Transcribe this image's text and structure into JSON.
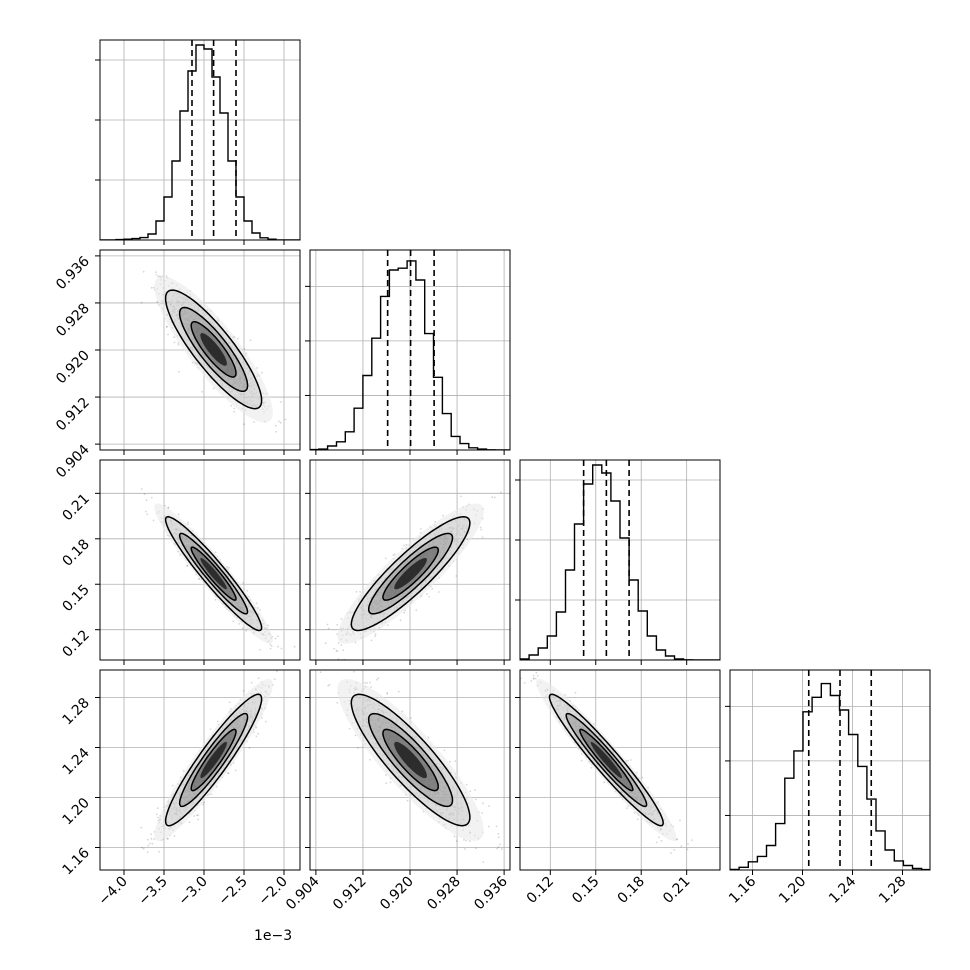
{
  "chart_data": {
    "type": "corner",
    "grid": true,
    "parameters": [
      {
        "index": 0,
        "range": [
          -4.3,
          -1.8
        ],
        "ticks": [
          -4.0,
          -3.5,
          -3.0,
          -2.5,
          -2.0
        ],
        "tick_labels": [
          "−4.0",
          "−3.5",
          "−3.0",
          "−2.5",
          "−2.0"
        ],
        "offset_label": "1e−3",
        "quantiles": [
          -3.15,
          -2.88,
          -2.6
        ],
        "hist_edges": [
          -4.3,
          -4.2,
          -4.1,
          -4.0,
          -3.9,
          -3.8,
          -3.7,
          -3.6,
          -3.5,
          -3.4,
          -3.3,
          -3.2,
          -3.1,
          -3.0,
          -2.9,
          -2.8,
          -2.7,
          -2.6,
          -2.5,
          -2.4,
          -2.3,
          -2.2,
          -2.1,
          -2.0,
          -1.9,
          -1.8
        ],
        "hist_counts": [
          0,
          0,
          2,
          4,
          7,
          12,
          30,
          95,
          215,
          395,
          645,
          845,
          975,
          955,
          815,
          635,
          395,
          215,
          95,
          35,
          11,
          4,
          0,
          0,
          0
        ],
        "hist_ylim": [
          0,
          1000
        ],
        "hist_ticks": [
          300,
          600,
          900
        ]
      },
      {
        "index": 1,
        "range": [
          0.903,
          0.937
        ],
        "ticks": [
          0.904,
          0.912,
          0.92,
          0.928,
          0.936
        ],
        "tick_labels": [
          "0.904",
          "0.912",
          "0.920",
          "0.928",
          "0.936"
        ],
        "quantiles": [
          0.9162,
          0.9201,
          0.9241
        ],
        "hist_edges": [
          0.903,
          0.9045,
          0.906,
          0.9075,
          0.909,
          0.9105,
          0.912,
          0.9135,
          0.915,
          0.9165,
          0.918,
          0.9195,
          0.921,
          0.9225,
          0.924,
          0.9255,
          0.927,
          0.9285,
          0.93,
          0.9315,
          0.933,
          0.9345,
          0.936,
          0.937
        ],
        "hist_counts": [
          2,
          5,
          22,
          45,
          100,
          230,
          410,
          615,
          845,
          990,
          1000,
          1040,
          935,
          640,
          400,
          200,
          75,
          35,
          12,
          5,
          1,
          0,
          0
        ],
        "hist_ylim": [
          0,
          1100
        ],
        "hist_ticks": [
          300,
          600,
          900
        ]
      },
      {
        "index": 2,
        "range": [
          0.1,
          0.232
        ],
        "ticks": [
          0.12,
          0.15,
          0.18,
          0.21
        ],
        "tick_labels": [
          "0.12",
          "0.15",
          "0.18",
          "0.21"
        ],
        "quantiles": [
          0.142,
          0.157,
          0.172
        ],
        "hist_edges": [
          0.1,
          0.106,
          0.112,
          0.118,
          0.124,
          0.13,
          0.136,
          0.142,
          0.148,
          0.154,
          0.16,
          0.166,
          0.172,
          0.178,
          0.184,
          0.19,
          0.196,
          0.202,
          0.208,
          0.214,
          0.22,
          0.226,
          0.232
        ],
        "hist_counts": [
          5,
          25,
          60,
          120,
          240,
          450,
          680,
          880,
          975,
          935,
          795,
          610,
          400,
          245,
          120,
          50,
          20,
          5,
          1,
          0,
          0,
          0
        ],
        "hist_ylim": [
          0,
          1000
        ],
        "hist_ticks": [
          300,
          600,
          900
        ]
      },
      {
        "index": 3,
        "range": [
          1.142,
          1.302
        ],
        "ticks": [
          1.16,
          1.2,
          1.24,
          1.28
        ],
        "tick_labels": [
          "1.16",
          "1.20",
          "1.24",
          "1.28"
        ],
        "quantiles": [
          1.205,
          1.23,
          1.255
        ],
        "hist_edges": [
          1.142,
          1.1493,
          1.1566,
          1.1639,
          1.1712,
          1.1785,
          1.1858,
          1.1931,
          1.2004,
          1.2077,
          1.215,
          1.2223,
          1.2296,
          1.2369,
          1.2442,
          1.2515,
          1.2588,
          1.2661,
          1.2734,
          1.2807,
          1.288,
          1.2953,
          1.302
        ],
        "hist_counts": [
          3,
          15,
          45,
          75,
          135,
          255,
          505,
          655,
          870,
          950,
          1025,
          960,
          880,
          745,
          570,
          390,
          215,
          110,
          50,
          25,
          8,
          2
        ],
        "hist_ylim": [
          0,
          1100
        ],
        "hist_ticks": [
          300,
          600,
          900
        ]
      }
    ],
    "pairs": [
      {
        "i": 0,
        "j": 1,
        "mean": [
          -2.88,
          0.9201
        ],
        "sd": [
          0.28,
          0.0047
        ],
        "rho": -0.86
      },
      {
        "i": 0,
        "j": 2,
        "mean": [
          -2.88,
          0.157
        ],
        "sd": [
          0.28,
          0.0175
        ],
        "rho": -0.95
      },
      {
        "i": 1,
        "j": 2,
        "mean": [
          0.9201,
          0.157
        ],
        "sd": [
          0.0047,
          0.0175
        ],
        "rho": 0.89
      },
      {
        "i": 0,
        "j": 3,
        "mean": [
          -2.88,
          1.23
        ],
        "sd": [
          0.28,
          0.0245
        ],
        "rho": 0.93
      },
      {
        "i": 1,
        "j": 3,
        "mean": [
          0.9201,
          1.23
        ],
        "sd": [
          0.0047,
          0.0245
        ],
        "rho": -0.87
      },
      {
        "i": 2,
        "j": 3,
        "mean": [
          0.157,
          1.23
        ],
        "sd": [
          0.0175,
          0.0245
        ],
        "rho": -0.96
      }
    ]
  }
}
